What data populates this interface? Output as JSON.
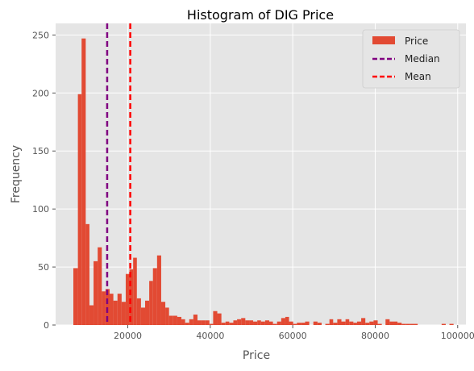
{
  "chart_data": {
    "type": "bar",
    "title": "Histogram of DIG Price",
    "xlabel": "Price",
    "ylabel": "Frequency",
    "xlim": [
      2500,
      102000
    ],
    "ylim": [
      0,
      260
    ],
    "xticks": [
      20000,
      40000,
      60000,
      80000,
      100000
    ],
    "yticks": [
      0,
      50,
      100,
      150,
      200,
      250
    ],
    "grid": true,
    "legend_position": "top-right",
    "bin_edges": [
      6800,
      7900,
      8800,
      9800,
      10700,
      11700,
      12700,
      13700,
      14600,
      15600,
      16500,
      17500,
      18500,
      19500,
      20400,
      21300,
      22200,
      23200,
      24200,
      25200,
      26100,
      27100,
      28100,
      29100,
      30000,
      31000,
      32000,
      33000,
      33900,
      34900,
      35900,
      36900,
      37800,
      38800,
      39800,
      40700,
      41700,
      42700,
      43700,
      44600,
      45600,
      46500,
      47500,
      48500,
      49500,
      50400,
      51400,
      52300,
      53300,
      54300,
      55200,
      56200,
      57200,
      58200,
      59100,
      60100,
      61000,
      62000,
      63000,
      64000,
      65000,
      66000,
      67000,
      67900,
      68900,
      69800,
      70800,
      71800,
      72800,
      73700,
      74700,
      75600,
      76600,
      77600,
      78600,
      79600,
      80600,
      81600,
      82500,
      83500,
      84500,
      85400,
      86400,
      87400,
      88400,
      89300,
      90300,
      91200,
      92200,
      93100,
      94100,
      95100,
      96100,
      97100,
      98000,
      99000
    ],
    "counts": [
      49,
      199,
      247,
      87,
      17,
      55,
      67,
      29,
      31,
      27,
      21,
      27,
      20,
      44,
      48,
      58,
      23,
      15,
      21,
      38,
      49,
      60,
      20,
      15,
      8,
      8,
      7,
      5,
      2,
      5,
      9,
      4,
      4,
      4,
      1,
      12,
      10,
      2,
      3,
      2,
      4,
      5,
      6,
      4,
      4,
      3,
      4,
      3,
      4,
      3,
      1,
      3,
      6,
      7,
      3,
      1,
      2,
      2,
      3,
      0,
      3,
      2,
      0,
      1,
      5,
      2,
      5,
      3,
      5,
      3,
      2,
      3,
      6,
      2,
      3,
      4,
      1,
      0,
      5,
      3,
      3,
      2,
      1,
      1,
      1,
      1,
      0,
      0,
      0,
      0,
      0,
      0,
      1,
      0,
      1
    ],
    "median": 15000,
    "mean": 20600,
    "series": [
      {
        "name": "Price",
        "color": "#E24A33",
        "kind": "bars"
      },
      {
        "name": "Median",
        "color": "#800080",
        "kind": "dashed-vline"
      },
      {
        "name": "Mean",
        "color": "#FF0000",
        "kind": "dashed-vline"
      }
    ],
    "style": {
      "background": "#E5E5E5",
      "grid_color": "#FFFFFF"
    }
  }
}
